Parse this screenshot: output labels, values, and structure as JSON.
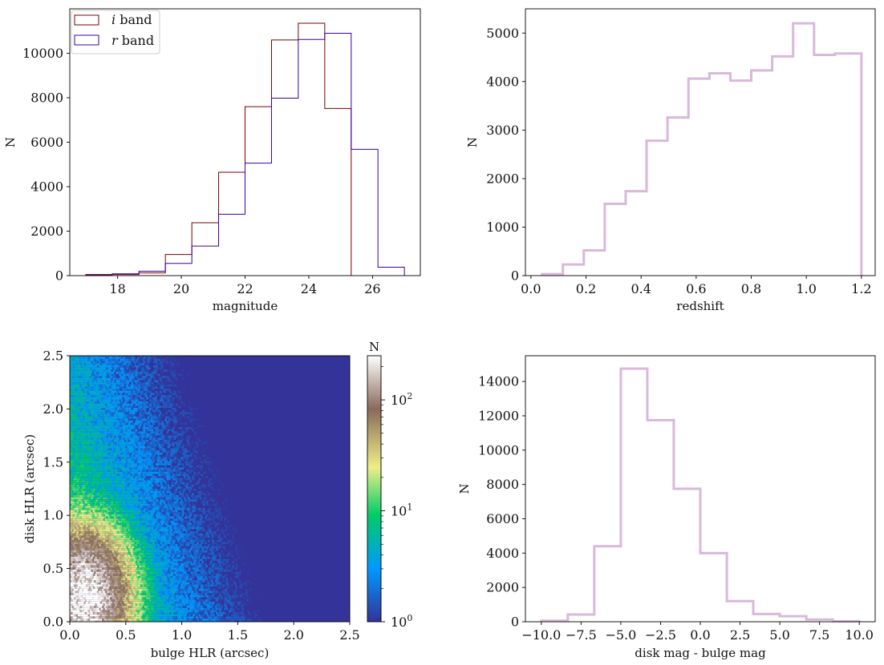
{
  "chart_data": [
    {
      "type": "step-histogram",
      "title": "",
      "xlabel": "magnitude",
      "ylabel": "N",
      "xlim": [
        16.5,
        27.5
      ],
      "ylim": [
        0,
        12000
      ],
      "xticks": [
        18,
        20,
        22,
        24,
        26
      ],
      "yticks": [
        0,
        2000,
        4000,
        6000,
        8000,
        10000
      ],
      "legend_position": "top-left",
      "series": [
        {
          "name": "i band",
          "legend_italic": "i",
          "legend_rest": " band",
          "color": "#7a0000",
          "edges": [
            17.0,
            18.67,
            19.5,
            20.33,
            21.17,
            22.0,
            22.83,
            23.67,
            24.5,
            25.33
          ],
          "values": [
            50,
            120,
            950,
            2380,
            4650,
            7600,
            10600,
            11350,
            7520
          ]
        },
        {
          "name": "r band",
          "legend_italic": "r",
          "legend_rest": " band",
          "color": "#3b00a0",
          "edges": [
            17.0,
            17.83,
            18.67,
            19.5,
            20.33,
            21.17,
            22.0,
            22.83,
            23.67,
            24.5,
            25.33,
            26.17,
            27.0
          ],
          "values": [
            20,
            80,
            200,
            550,
            1330,
            2760,
            5060,
            7980,
            10620,
            10900,
            5680,
            380
          ]
        }
      ]
    },
    {
      "type": "step-histogram",
      "title": "",
      "xlabel": "redshift",
      "ylabel": "N",
      "xlim": [
        -0.02,
        1.25
      ],
      "ylim": [
        0,
        5500
      ],
      "xticks": [
        0.0,
        0.2,
        0.4,
        0.6,
        0.8,
        1.0,
        1.2
      ],
      "yticks": [
        0,
        1000,
        2000,
        3000,
        4000,
        5000
      ],
      "series": [
        {
          "name": "redshift",
          "color": "#d9b8d9",
          "edges": [
            0.04,
            0.116,
            0.192,
            0.268,
            0.344,
            0.42,
            0.496,
            0.572,
            0.648,
            0.724,
            0.8,
            0.876,
            0.952,
            1.028,
            1.104,
            1.18,
            1.2
          ],
          "values": [
            30,
            230,
            520,
            1480,
            1740,
            2780,
            3260,
            4060,
            4170,
            4020,
            4230,
            4520,
            5200,
            4550,
            4580,
            4580
          ]
        }
      ]
    },
    {
      "type": "hexbin",
      "title": "",
      "xlabel": "bulge HLR (arcsec)",
      "ylabel": "disk HLR (arcsec)",
      "xlim": [
        0.0,
        2.5
      ],
      "ylim": [
        0.0,
        2.5
      ],
      "xticks": [
        0.0,
        0.5,
        1.0,
        1.5,
        2.0,
        2.5
      ],
      "yticks": [
        0.0,
        0.5,
        1.0,
        1.5,
        2.0,
        2.5
      ],
      "colormap": "terrain",
      "colorbar_label": "N",
      "colorbar_scale": "log",
      "colorbar_range": [
        1,
        250
      ],
      "colorbar_ticks": [
        {
          "value": 1,
          "base": "10",
          "exp": "0"
        },
        {
          "value": 10,
          "base": "10",
          "exp": "1"
        },
        {
          "value": 100,
          "base": "10",
          "exp": "2"
        }
      ],
      "density_peak": {
        "bulge_hlr": 0.12,
        "disk_hlr": 0.25,
        "peak_count": 250
      }
    },
    {
      "type": "step-histogram",
      "title": "",
      "xlabel": "disk mag - bulge mag",
      "ylabel": "N",
      "xlim": [
        -11.0,
        11.0
      ],
      "ylim": [
        0,
        15500
      ],
      "xticks": [
        -10.0,
        -7.5,
        -5.0,
        -2.5,
        0.0,
        2.5,
        5.0,
        7.5,
        10.0
      ],
      "xtick_labels": [
        "−10.0",
        "−7.5",
        "−5.0",
        "−2.5",
        "0.0",
        "2.5",
        "5.0",
        "7.5",
        "10.0"
      ],
      "yticks": [
        0,
        2000,
        4000,
        6000,
        8000,
        10000,
        12000,
        14000
      ],
      "series": [
        {
          "name": "disk mag - bulge mag",
          "color": "#d9b8d9",
          "edges": [
            -10.0,
            -8.33,
            -6.67,
            -5.0,
            -3.33,
            -1.67,
            0.0,
            1.67,
            3.33,
            5.0,
            6.67,
            8.33,
            10.0
          ],
          "values": [
            60,
            420,
            4400,
            14750,
            11750,
            7750,
            4000,
            1200,
            450,
            320,
            130,
            30
          ]
        }
      ]
    }
  ]
}
